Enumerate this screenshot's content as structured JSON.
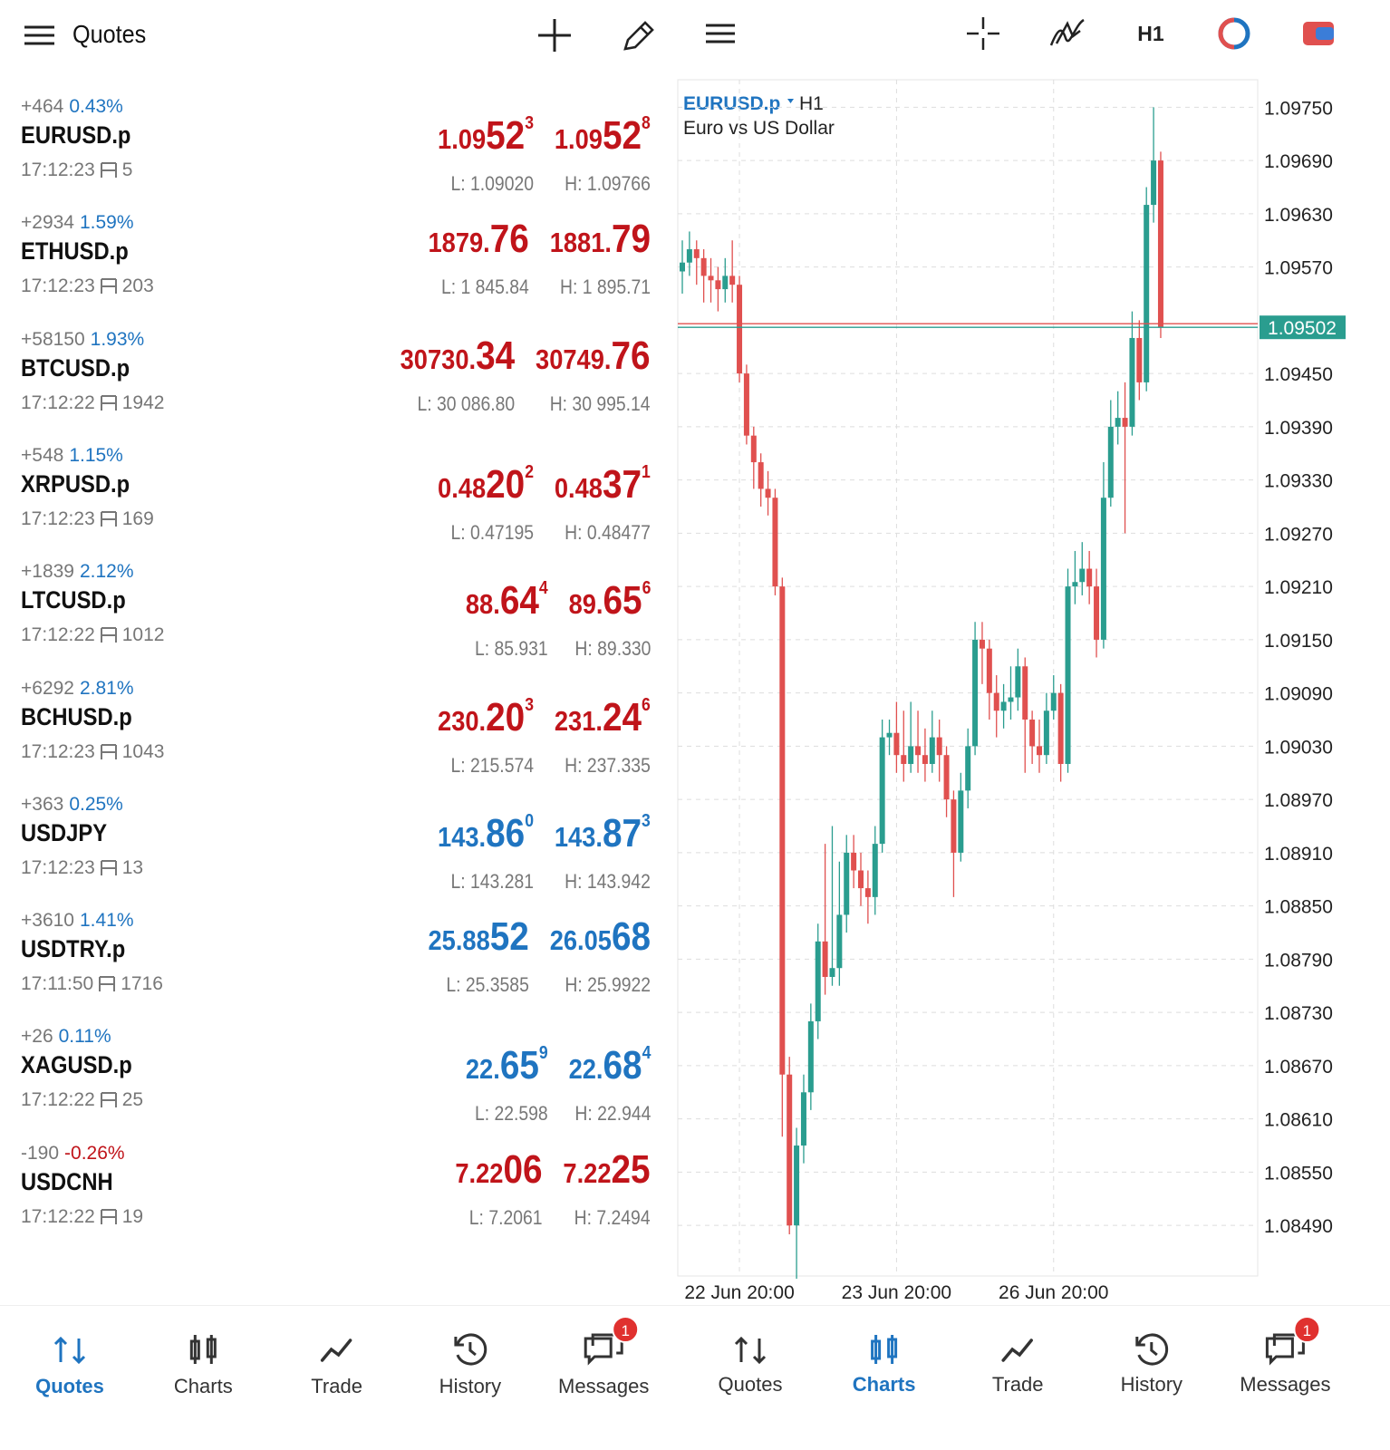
{
  "left_header": {
    "title": "Quotes"
  },
  "quotes": [
    {
      "change": "+464",
      "percent": "0.43%",
      "percent_color": "#1f74c0",
      "symbol": "EURUSD.p",
      "time": "17:12:23",
      "spread": "5",
      "price_color": "#c0141a",
      "bid": [
        "1.09",
        "52",
        "3"
      ],
      "ask": [
        "1.09",
        "52",
        "8"
      ],
      "low": "L: 1.09020",
      "high": "H: 1.09766"
    },
    {
      "change": "+2934",
      "percent": "1.59%",
      "percent_color": "#1f74c0",
      "symbol": "ETHUSD.p",
      "time": "17:12:23",
      "spread": "203",
      "price_color": "#c0141a",
      "bid": [
        "1879.",
        "76"
      ],
      "ask": [
        "1881.",
        "79"
      ],
      "low": "L: 1 845.84",
      "high": "H: 1 895.71"
    },
    {
      "change": "+58150",
      "percent": "1.93%",
      "percent_color": "#1f74c0",
      "symbol": "BTCUSD.p",
      "time": "17:12:22",
      "spread": "1942",
      "price_color": "#c0141a",
      "bid": [
        "30730.",
        "34"
      ],
      "ask": [
        "30749.",
        "76"
      ],
      "low": "L: 30 086.80",
      "high": "H: 30 995.14"
    },
    {
      "change": "+548",
      "percent": "1.15%",
      "percent_color": "#1f74c0",
      "symbol": "XRPUSD.p",
      "time": "17:12:23",
      "spread": "169",
      "price_color": "#c0141a",
      "bid": [
        "0.48",
        "20",
        "2"
      ],
      "ask": [
        "0.48",
        "37",
        "1"
      ],
      "low": "L: 0.47195",
      "high": "H: 0.48477"
    },
    {
      "change": "+1839",
      "percent": "2.12%",
      "percent_color": "#1f74c0",
      "symbol": "LTCUSD.p",
      "time": "17:12:22",
      "spread": "1012",
      "price_color": "#c0141a",
      "bid": [
        "88.",
        "64",
        "4"
      ],
      "ask": [
        "89.",
        "65",
        "6"
      ],
      "low": "L: 85.931",
      "high": "H: 89.330"
    },
    {
      "change": "+6292",
      "percent": "2.81%",
      "percent_color": "#1f74c0",
      "symbol": "BCHUSD.p",
      "time": "17:12:23",
      "spread": "1043",
      "price_color": "#c0141a",
      "bid": [
        "230.",
        "20",
        "3"
      ],
      "ask": [
        "231.",
        "24",
        "6"
      ],
      "low": "L: 215.574",
      "high": "H: 237.335"
    },
    {
      "change": "+363",
      "percent": "0.25%",
      "percent_color": "#1f74c0",
      "symbol": "USDJPY",
      "time": "17:12:23",
      "spread": "13",
      "price_color": "#1f74c0",
      "bid": [
        "143.",
        "86",
        "0"
      ],
      "ask": [
        "143.",
        "87",
        "3"
      ],
      "low": "L: 143.281",
      "high": "H: 143.942"
    },
    {
      "change": "+3610",
      "percent": "1.41%",
      "percent_color": "#1f74c0",
      "symbol": "USDTRY.p",
      "time": "17:11:50",
      "spread": "1716",
      "price_color": "#1f74c0",
      "bid": [
        "25.88",
        "52"
      ],
      "ask": [
        "26.05",
        "68"
      ],
      "low": "L: 25.3585",
      "high": "H: 25.9922"
    },
    {
      "change": "+26",
      "percent": "0.11%",
      "percent_color": "#1f74c0",
      "symbol": "XAGUSD.p",
      "time": "17:12:22",
      "spread": "25",
      "price_color": "#1f74c0",
      "bid": [
        "22.",
        "65",
        "9"
      ],
      "ask": [
        "22.",
        "68",
        "4"
      ],
      "low": "L: 22.598",
      "high": "H: 22.944"
    },
    {
      "change": "-190",
      "percent": "-0.26%",
      "percent_color": "#c0141a",
      "symbol": "USDCNH",
      "time": "17:12:22",
      "spread": "19",
      "price_color": "#c0141a",
      "bid": [
        "7.22",
        "06"
      ],
      "ask": [
        "7.22",
        "25"
      ],
      "low": "L: 7.2061",
      "high": "H: 7.2494"
    }
  ],
  "chart_toolbar": {
    "timeframe": "H1"
  },
  "chart_data": {
    "type": "candlestick",
    "symbol": "EURUSD.p",
    "timeframe": "H1",
    "description": "Euro vs US Dollar",
    "categories": [
      null,
      null,
      null,
      null,
      null,
      null,
      null,
      null,
      "22 Jun 20:00",
      null,
      null,
      null,
      null,
      null,
      null,
      null,
      null,
      null,
      null,
      null,
      null,
      null,
      null,
      null,
      null,
      null,
      null,
      null,
      null,
      null,
      "23 Jun 20:00",
      null,
      null,
      null,
      null,
      null,
      null,
      null,
      null,
      null,
      null,
      null,
      null,
      null,
      null,
      null,
      null,
      null,
      null,
      null,
      null,
      null,
      "26 Jun 20:00",
      null,
      null,
      null,
      null,
      null,
      null,
      null,
      null,
      null,
      null,
      null,
      null,
      null,
      null,
      null
    ],
    "open": [
      1.09565,
      1.09575,
      1.0959,
      1.0958,
      1.0956,
      1.09555,
      1.09545,
      1.0956,
      1.0955,
      1.0945,
      1.0938,
      1.0935,
      1.0932,
      1.0931,
      1.0921,
      1.0866,
      1.0849,
      1.0858,
      1.0864,
      1.0872,
      1.0881,
      1.0877,
      1.0878,
      1.0884,
      1.0891,
      1.0889,
      1.0887,
      1.0886,
      1.0892,
      1.0904,
      1.09045,
      1.0902,
      1.0901,
      1.0903,
      1.0902,
      1.0901,
      1.0904,
      1.0902,
      1.0897,
      1.0891,
      1.0898,
      1.0903,
      1.0915,
      1.0914,
      1.0909,
      1.0907,
      1.0908,
      1.09085,
      1.0912,
      1.0906,
      1.0903,
      1.0902,
      1.0907,
      1.0909,
      1.0901,
      1.0921,
      1.09215,
      1.0923,
      1.0921,
      1.0915,
      1.0931,
      1.0939,
      1.094,
      1.0939,
      1.0949,
      1.0944,
      1.0964,
      1.0969
    ],
    "high": [
      1.096,
      1.0961,
      1.096,
      1.0959,
      1.0958,
      1.0957,
      1.0958,
      1.096,
      1.0956,
      1.0946,
      1.0939,
      1.0936,
      1.0934,
      1.0932,
      1.0922,
      1.0868,
      1.086,
      1.0866,
      1.0874,
      1.0883,
      1.0892,
      1.0894,
      1.089,
      1.0893,
      1.0893,
      1.0891,
      1.0889,
      1.0894,
      1.0906,
      1.0906,
      1.0908,
      1.0907,
      1.0908,
      1.0907,
      1.0905,
      1.0907,
      1.0906,
      1.0903,
      1.0898,
      1.09,
      1.0905,
      1.0917,
      1.0917,
      1.0915,
      1.0911,
      1.091,
      1.0912,
      1.0914,
      1.0913,
      1.0907,
      1.0906,
      1.0909,
      1.0911,
      1.091,
      1.0923,
      1.0925,
      1.0926,
      1.0925,
      1.0923,
      1.0935,
      1.0942,
      1.0943,
      1.0944,
      1.0952,
      1.0951,
      1.0966,
      1.0975,
      1.097
    ],
    "low": [
      1.0954,
      1.0956,
      1.0955,
      1.0953,
      1.0953,
      1.0952,
      1.0953,
      1.0953,
      1.0944,
      1.0937,
      1.0932,
      1.093,
      1.0929,
      1.092,
      1.0859,
      1.0848,
      1.0843,
      1.0856,
      1.0862,
      1.087,
      1.0875,
      1.0876,
      1.0876,
      1.0882,
      1.0887,
      1.0885,
      1.0883,
      1.0884,
      1.0891,
      1.0902,
      1.09,
      1.0899,
      1.09,
      1.09,
      1.0899,
      1.09,
      1.0899,
      1.0895,
      1.0886,
      1.089,
      1.0896,
      1.0902,
      1.091,
      1.0906,
      1.0904,
      1.0905,
      1.0906,
      1.0907,
      1.09,
      1.0901,
      1.09,
      1.0901,
      1.0906,
      1.0899,
      1.09,
      1.0919,
      1.092,
      1.0919,
      1.0913,
      1.0914,
      1.093,
      1.0937,
      1.0927,
      1.0938,
      1.0942,
      1.0943,
      1.0962,
      1.0949
    ],
    "close": [
      1.09575,
      1.0959,
      1.0958,
      1.0956,
      1.09555,
      1.09545,
      1.0956,
      1.0955,
      1.0945,
      1.0938,
      1.0935,
      1.0932,
      1.0931,
      1.0921,
      1.0866,
      1.0849,
      1.0858,
      1.0864,
      1.0872,
      1.0881,
      1.0877,
      1.0878,
      1.0884,
      1.0891,
      1.0889,
      1.0887,
      1.0886,
      1.0892,
      1.0904,
      1.09045,
      1.0902,
      1.0901,
      1.0903,
      1.0902,
      1.0901,
      1.0904,
      1.0902,
      1.0897,
      1.0891,
      1.0898,
      1.0903,
      1.0915,
      1.0914,
      1.0909,
      1.0907,
      1.0908,
      1.09085,
      1.0912,
      1.0906,
      1.0903,
      1.0902,
      1.0907,
      1.0909,
      1.0901,
      1.0921,
      1.09215,
      1.0923,
      1.0921,
      1.0915,
      1.0931,
      1.0939,
      1.094,
      1.0939,
      1.0949,
      1.0944,
      1.0964,
      1.0969,
      1.09502
    ],
    "up_color": "#2a9d8f",
    "down_color": "#e0504f",
    "ylim": [
      1.08433,
      1.09781
    ],
    "yticks": [
      {
        "value": 1.0975,
        "label": "1.09750"
      },
      {
        "value": 1.0969,
        "label": "1.09690"
      },
      {
        "value": 1.0963,
        "label": "1.09630"
      },
      {
        "value": 1.0957,
        "label": "1.09570"
      },
      {
        "value": 1.0945,
        "label": "1.09450"
      },
      {
        "value": 1.0939,
        "label": "1.09390"
      },
      {
        "value": 1.0933,
        "label": "1.09330"
      },
      {
        "value": 1.0927,
        "label": "1.09270"
      },
      {
        "value": 1.0921,
        "label": "1.09210"
      },
      {
        "value": 1.0915,
        "label": "1.09150"
      },
      {
        "value": 1.0909,
        "label": "1.09090"
      },
      {
        "value": 1.0903,
        "label": "1.09030"
      },
      {
        "value": 1.0897,
        "label": "1.08970"
      },
      {
        "value": 1.0891,
        "label": "1.08910"
      },
      {
        "value": 1.0885,
        "label": "1.08850"
      },
      {
        "value": 1.0879,
        "label": "1.08790"
      },
      {
        "value": 1.0873,
        "label": "1.08730"
      },
      {
        "value": 1.0867,
        "label": "1.08670"
      },
      {
        "value": 1.0861,
        "label": "1.08610"
      },
      {
        "value": 1.0855,
        "label": "1.08550"
      },
      {
        "value": 1.0849,
        "label": "1.08490"
      }
    ],
    "grid": true,
    "current_price": 1.09502,
    "current_price_color": "#2a9d8f"
  },
  "left_nav": {
    "items": [
      "Quotes",
      "Charts",
      "Trade",
      "History",
      "Messages"
    ],
    "active": 0,
    "badge": "1"
  },
  "right_nav": {
    "items": [
      "Quotes",
      "Charts",
      "Trade",
      "History",
      "Messages"
    ],
    "active": 1,
    "badge": "1"
  }
}
